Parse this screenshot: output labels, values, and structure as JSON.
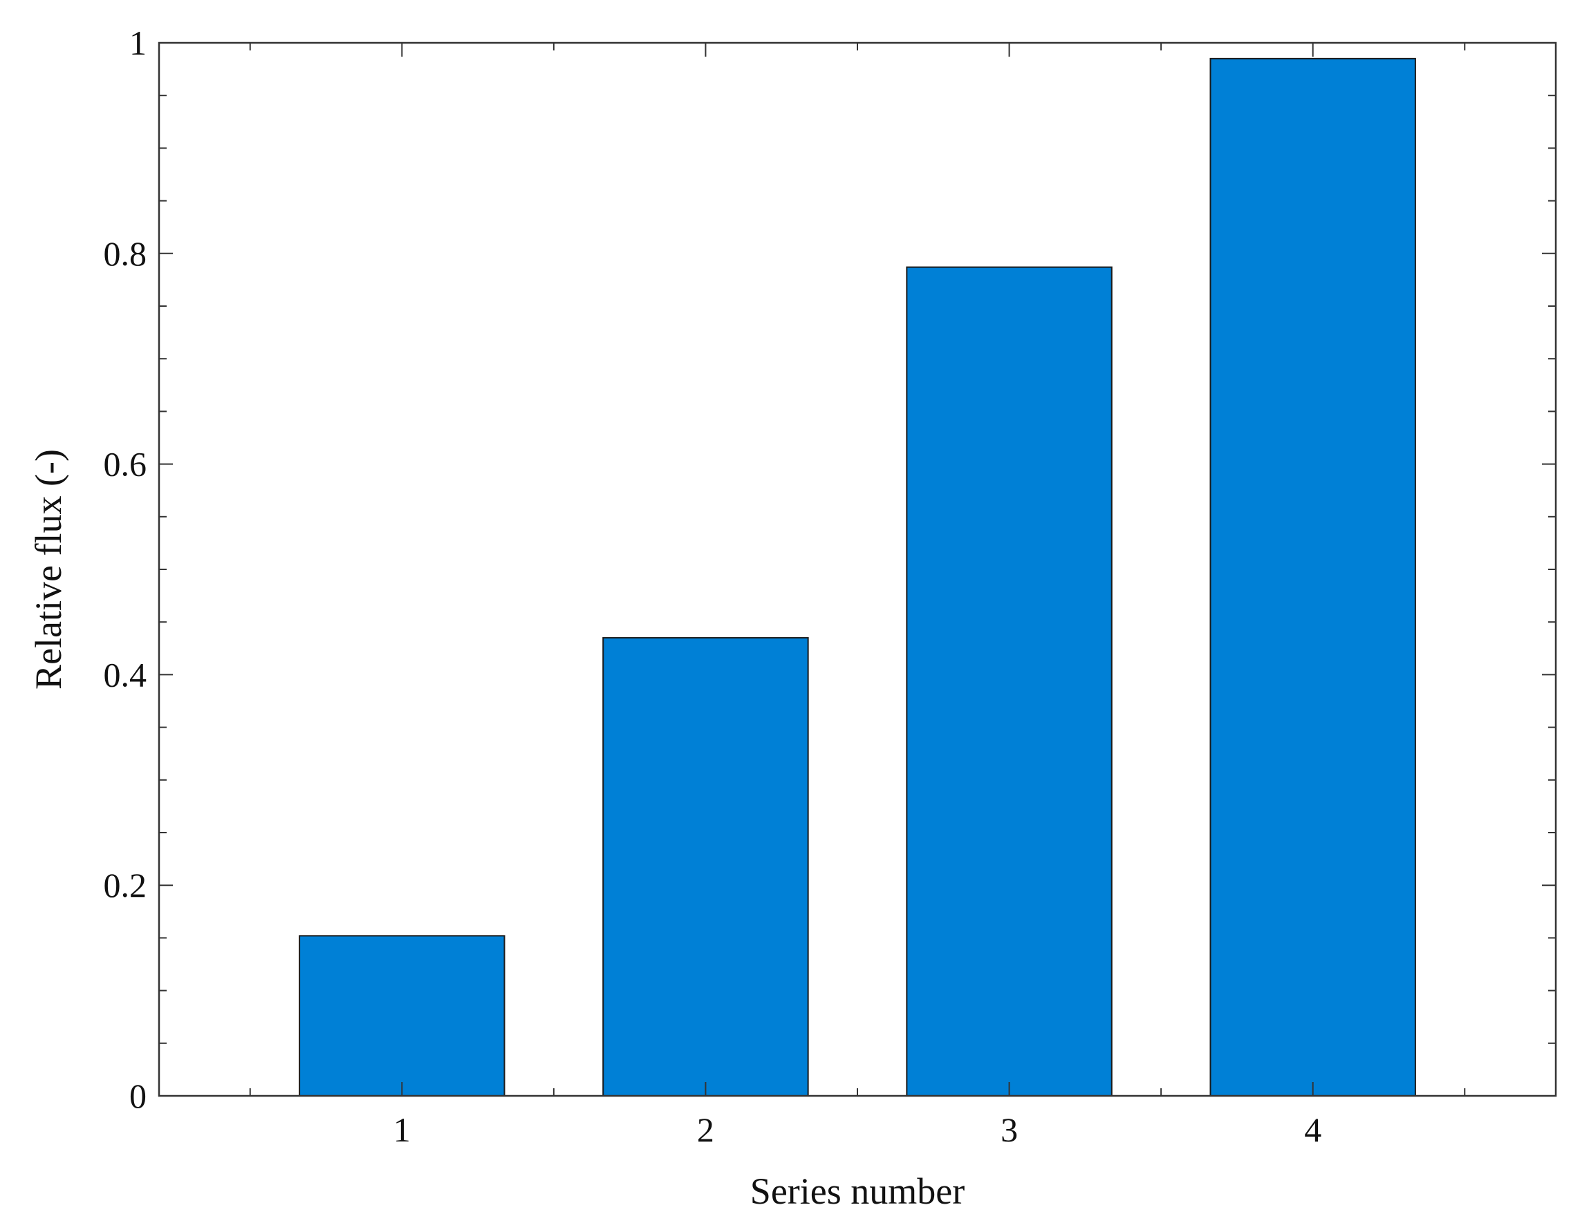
{
  "chart_data": {
    "type": "bar",
    "categories": [
      "1",
      "2",
      "3",
      "4"
    ],
    "values": [
      0.152,
      0.435,
      0.787,
      0.985
    ],
    "xlabel": "Series number",
    "ylabel": "Relative flux (-)",
    "ylim": [
      0,
      1
    ],
    "xlim": [
      0.2,
      4.8
    ],
    "yticks": [
      0,
      0.2,
      0.4,
      0.6,
      0.8,
      1
    ],
    "ytick_labels": [
      "0",
      "0.2",
      "0.4",
      "0.6",
      "0.8",
      "1"
    ],
    "grid": false,
    "legend": "none",
    "bar_color": "#0080d6",
    "edge_color": "#1a1a1a"
  }
}
